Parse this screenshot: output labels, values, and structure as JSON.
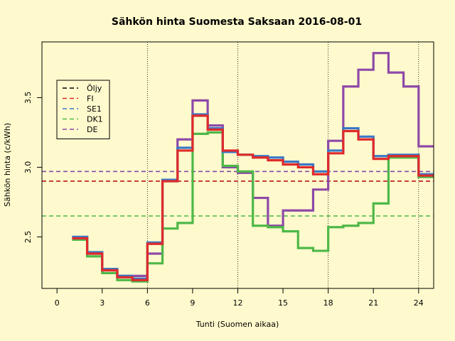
{
  "chart_data": {
    "type": "line",
    "title": "Sähkön hinta Suomesta Saksaan 2016-08-01",
    "xlabel": "Tunti (Suomen aikaa)",
    "ylabel": "Sähkön hinta (c/kWh)",
    "xlim": [
      -1,
      25
    ],
    "ylim": [
      2.13,
      3.9
    ],
    "x_ticks": [
      0,
      3,
      6,
      9,
      12,
      15,
      18,
      21,
      24
    ],
    "y_ticks": [
      2.5,
      3.0,
      3.5
    ],
    "y_tick_labels": [
      "2.5",
      "3.0",
      "3.5"
    ],
    "vertical_gridlines": [
      6,
      12,
      18,
      24
    ],
    "legend": {
      "position": "top-left",
      "entries": [
        {
          "label": "Öljy",
          "color": "#000000"
        },
        {
          "label": "FI",
          "color": "#DF2A2A"
        },
        {
          "label": "SE1",
          "color": "#3A78C6"
        },
        {
          "label": "DK1",
          "color": "#4DB848"
        },
        {
          "label": "DE",
          "color": "#8E49A8"
        }
      ]
    },
    "reference_lines": [
      {
        "name": "Öljy",
        "value": 2.9,
        "color": "#000000"
      },
      {
        "name": "FI",
        "value": 2.9,
        "color": "#DF2A2A"
      },
      {
        "name": "SE1",
        "value": 2.97,
        "color": "#3A78C6"
      },
      {
        "name": "DK1",
        "value": 2.65,
        "color": "#4DB848"
      },
      {
        "name": "DE",
        "value": 2.97,
        "color": "#8E49A8"
      }
    ],
    "step_hours": [
      1,
      2,
      3,
      4,
      5,
      6,
      7,
      8,
      9,
      10,
      11,
      12,
      13,
      14,
      15,
      16,
      17,
      18,
      19,
      20,
      21,
      22,
      23,
      24,
      25
    ],
    "series": [
      {
        "name": "DE",
        "color": "#8E49A8",
        "values": [
          2.5,
          2.38,
          2.26,
          2.22,
          2.22,
          2.38,
          2.9,
          3.2,
          3.48,
          3.3,
          3.0,
          2.96,
          2.78,
          2.58,
          2.69,
          2.69,
          2.84,
          3.19,
          3.58,
          3.7,
          3.82,
          3.68,
          3.58,
          3.15,
          3.15
        ]
      },
      {
        "name": "DK1",
        "color": "#4DB848",
        "values": [
          2.48,
          2.36,
          2.24,
          2.19,
          2.18,
          2.31,
          2.56,
          2.6,
          3.24,
          3.25,
          3.01,
          2.97,
          2.58,
          2.57,
          2.54,
          2.42,
          2.4,
          2.57,
          2.58,
          2.6,
          2.74,
          3.07,
          3.07,
          2.93,
          2.93
        ]
      },
      {
        "name": "SE1",
        "color": "#3A78C6",
        "values": [
          2.5,
          2.39,
          2.27,
          2.22,
          2.2,
          2.46,
          2.91,
          3.14,
          3.38,
          3.28,
          3.11,
          3.09,
          3.08,
          3.07,
          3.04,
          3.02,
          2.97,
          3.12,
          3.28,
          3.22,
          3.08,
          3.09,
          3.09,
          2.95,
          2.95
        ]
      },
      {
        "name": "FI",
        "color": "#DF2A2A",
        "values": [
          2.49,
          2.38,
          2.26,
          2.21,
          2.19,
          2.45,
          2.9,
          3.12,
          3.37,
          3.27,
          3.12,
          3.09,
          3.07,
          3.05,
          3.02,
          3.0,
          2.95,
          3.1,
          3.26,
          3.2,
          3.06,
          3.08,
          3.08,
          2.94,
          2.94
        ]
      }
    ]
  }
}
